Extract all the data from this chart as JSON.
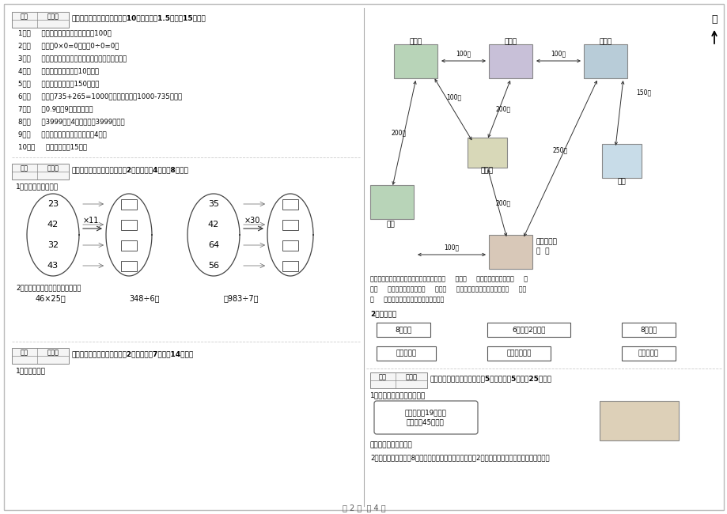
{
  "page_bg": "#ffffff",
  "page_num_text": "第 2 页  共 4 页",
  "left_col": {
    "section3_title": "三、仔细推敲，正确判断（共10小题，每题1.5分，共15分）。",
    "section3_items": [
      "1、（     ）两个面积单位之间的进率是100。",
      "2、（     ）因为0×0=0，所以0÷0=0。",
      "3、（     ）所有的大月都是单月，所有的小月都是双月。",
      "4、（     ）小明家客厅面积是10公顷。",
      "5、（     ）一本故事书约重150千克。",
      "6、（     ）根据735+265=1000，可以直接写出1000-735的差。",
      "7、（     ）0.9里有9个十分之一。",
      "8、（     ）3999克与4千克相比，3999克重。",
      "9、（     ）正方形的周长是它的边长的4倍。",
      "10、（     ）李老师身高15米。"
    ],
    "section4_title": "四、看清题目，细心计算（共2小题，每题4分，共8分）。",
    "section4_sub1": "1、算一算，填一填。",
    "oval_left_nums": [
      "23",
      "42",
      "32",
      "43"
    ],
    "oval_right_nums": [
      "35",
      "42",
      "64",
      "56"
    ],
    "mult_left": "×11",
    "mult_right": "×30",
    "section4_sub2": "2、列竖式计算。（带＊的要验算）",
    "calc1": "46×25＝",
    "calc2": "348÷6＝",
    "calc3": "＊983÷7＝",
    "section5_title": "五、认真思考，综合能力（共2小题，每题7分，共14分）。",
    "section5_sub1": "1、看图填空："
  },
  "right_col": {
    "map_places": [
      "游乐园",
      "动物园",
      "天鹅湖",
      "牧场",
      "博物馆",
      "世纪欢乐园\n大  门",
      "沙滩"
    ],
    "north_label": "北",
    "q1_intro": "小丽想从世纪欢乐园大门到沙滩，可以先向（     ）走（     ）米到动物园，再向（     ）",
    "q1_line2": "走（     ）米到天鹅湖，再向（     ）走（     ）米就到了沙滩；也可以先向（     ）走",
    "q1_line3": "（     ）米到天鹅湖，再从天鹅湖到沙滩。",
    "q2_label": "2、连一连。",
    "ball_boxes": [
      "8个红球",
      "6个黄球2个红球",
      "8个蓝球"
    ],
    "result_boxes": [
      "可能是黄球",
      "不可能是红球",
      "一定是红球"
    ],
    "section6_title": "六、活用知识，解决问题（共5小题，每题5分，共25分）。",
    "section6_q1": "1、根据图片内容回答问题。",
    "speech_text": "每桶水约重19千克，\n我每天送45桶水。",
    "q6_1_bottom": "他每天送多少千克水？",
    "q6_2": "2、一个正方形边长是8分米，另一个正方形的边长是它的2倍，另一个正方形的周长是多少分米？"
  },
  "header_box": {
    "label1": "得分",
    "label2": "评卷人"
  }
}
